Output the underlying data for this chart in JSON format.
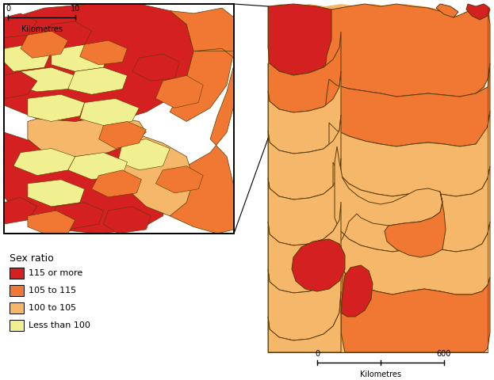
{
  "colors": {
    "cat1": "#D42020",
    "cat2": "#F07832",
    "cat3": "#F5B86A",
    "cat4": "#F0F090",
    "border": "#5a3a00",
    "bg": "#FFFFFF"
  },
  "legend": {
    "title": "Sex ratio",
    "entries": [
      "115 or more",
      "105 to 115",
      "100 to 105",
      "Less than 100"
    ],
    "colors": [
      "#D42020",
      "#F07832",
      "#F5B86A",
      "#F0F090"
    ]
  }
}
